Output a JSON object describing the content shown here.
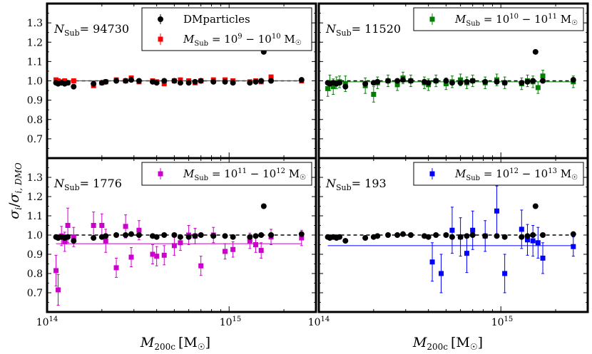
{
  "chart_data": {
    "type": "scatter",
    "xscale": "log",
    "xlim": [
      100000000000000.0,
      3000000000000000.0
    ],
    "ylim": [
      0.6,
      1.4
    ],
    "yticks": [
      0.7,
      0.8,
      0.9,
      1.0,
      1.1,
      1.2,
      1.3
    ],
    "ytick_labels": [
      "0.7",
      "0.8",
      "0.9",
      "1.0",
      "1.1",
      "1.2",
      "1.3"
    ],
    "xtick_labels": {
      "base_14": "10",
      "exp_14": "14",
      "base_15": "10",
      "exp_15": "15"
    },
    "xlabel": {
      "main": "M",
      "sub": "200c",
      "unit": "[M",
      "sun": "☉",
      "close": "]"
    },
    "ylabel": {
      "sigma": "σ",
      "i": "i",
      "slash": "/",
      "sub": "i, DMO"
    },
    "reference_line": 1.0,
    "dm": {
      "label": "DMparticles",
      "color": "#000000",
      "points": [
        [
          112000000000000.0,
          0.99
        ],
        [
          115000000000000.0,
          0.985
        ],
        [
          120000000000000.0,
          0.99
        ],
        [
          125000000000000.0,
          0.985
        ],
        [
          130000000000000.0,
          0.99
        ],
        [
          140000000000000.0,
          0.97
        ],
        [
          180000000000000.0,
          0.985
        ],
        [
          200000000000000.0,
          0.99
        ],
        [
          210000000000000.0,
          0.995
        ],
        [
          240000000000000.0,
          1.0
        ],
        [
          270000000000000.0,
          1.0
        ],
        [
          290000000000000.0,
          1.005
        ],
        [
          320000000000000.0,
          1.0
        ],
        [
          380000000000000.0,
          0.995
        ],
        [
          400000000000000.0,
          0.99
        ],
        [
          440000000000000.0,
          1.0
        ],
        [
          500000000000000.0,
          1.0
        ],
        [
          540000000000000.0,
          0.99
        ],
        [
          600000000000000.0,
          0.99
        ],
        [
          650000000000000.0,
          0.995
        ],
        [
          700000000000000.0,
          1.0
        ],
        [
          820000000000000.0,
          0.995
        ],
        [
          950000000000000.0,
          0.995
        ],
        [
          1050000000000000.0,
          0.99
        ],
        [
          1300000000000000.0,
          0.99
        ],
        [
          1400000000000000.0,
          0.995
        ],
        [
          1500000000000000.0,
          1.0
        ],
        [
          1550000000000000.0,
          1.15
        ],
        [
          1700000000000000.0,
          1.0
        ],
        [
          2500000000000000.0,
          1.005
        ]
      ]
    },
    "panels": [
      {
        "n_label": "N",
        "n_sub": "Sub",
        "n_value": "= 94730",
        "series_label": {
          "m": "M",
          "sub": "Sub",
          "eq": " = 10",
          "e1": "9",
          "dash": " − 10",
          "e2": "10",
          "unit": " M",
          "sun": "☉"
        },
        "color": "#ff0000",
        "fit": 1.0,
        "points": [
          [
            112000000000000.0,
            1.005,
            0.01
          ],
          [
            115000000000000.0,
            1.0,
            0.01
          ],
          [
            120000000000000.0,
            0.995,
            0.01
          ],
          [
            125000000000000.0,
            1.0,
            0.01
          ],
          [
            130000000000000.0,
            0.99,
            0.01
          ],
          [
            140000000000000.0,
            1.0,
            0.01
          ],
          [
            180000000000000.0,
            0.975,
            0.01
          ],
          [
            200000000000000.0,
            0.99,
            0.01
          ],
          [
            210000000000000.0,
            0.995,
            0.01
          ],
          [
            240000000000000.0,
            1.005,
            0.01
          ],
          [
            270000000000000.0,
            1.0,
            0.01
          ],
          [
            290000000000000.0,
            1.015,
            0.01
          ],
          [
            320000000000000.0,
            0.995,
            0.01
          ],
          [
            380000000000000.0,
            1.0,
            0.01
          ],
          [
            400000000000000.0,
            0.995,
            0.01
          ],
          [
            440000000000000.0,
            0.985,
            0.01
          ],
          [
            500000000000000.0,
            1.0,
            0.01
          ],
          [
            540000000000000.0,
            1.005,
            0.01
          ],
          [
            600000000000000.0,
            1.0,
            0.01
          ],
          [
            650000000000000.0,
            0.99,
            0.01
          ],
          [
            700000000000000.0,
            1.0,
            0.01
          ],
          [
            820000000000000.0,
            1.005,
            0.01
          ],
          [
            950000000000000.0,
            1.005,
            0.01
          ],
          [
            1050000000000000.0,
            1.0,
            0.01
          ],
          [
            1300000000000000.0,
            0.995,
            0.01
          ],
          [
            1400000000000000.0,
            1.0,
            0.01
          ],
          [
            1500000000000000.0,
            0.995,
            0.01
          ],
          [
            1700000000000000.0,
            1.02,
            0.01
          ],
          [
            2500000000000000.0,
            1.0,
            0.01
          ]
        ]
      },
      {
        "n_label": "N",
        "n_sub": "Sub",
        "n_value": "= 11520",
        "series_label": {
          "m": "M",
          "sub": "Sub",
          "eq": " = 10",
          "e1": "10",
          "dash": " − 10",
          "e2": "11",
          "unit": " M",
          "sun": "☉"
        },
        "color": "#008000",
        "fit": 0.995,
        "points": [
          [
            112000000000000.0,
            0.96,
            0.04
          ],
          [
            115000000000000.0,
            0.99,
            0.04
          ],
          [
            120000000000000.0,
            0.97,
            0.04
          ],
          [
            125000000000000.0,
            0.99,
            0.03
          ],
          [
            130000000000000.0,
            0.995,
            0.03
          ],
          [
            140000000000000.0,
            0.985,
            0.04
          ],
          [
            180000000000000.0,
            0.975,
            0.04
          ],
          [
            200000000000000.0,
            0.93,
            0.04
          ],
          [
            210000000000000.0,
            0.99,
            0.03
          ],
          [
            240000000000000.0,
            1.0,
            0.03
          ],
          [
            270000000000000.0,
            0.98,
            0.03
          ],
          [
            290000000000000.0,
            1.015,
            0.03
          ],
          [
            320000000000000.0,
            1.0,
            0.03
          ],
          [
            380000000000000.0,
            0.99,
            0.03
          ],
          [
            400000000000000.0,
            0.98,
            0.03
          ],
          [
            440000000000000.0,
            1.0,
            0.03
          ],
          [
            500000000000000.0,
            0.985,
            0.03
          ],
          [
            540000000000000.0,
            0.995,
            0.03
          ],
          [
            600000000000000.0,
            1.005,
            0.03
          ],
          [
            650000000000000.0,
            0.99,
            0.03
          ],
          [
            700000000000000.0,
            1.0,
            0.03
          ],
          [
            820000000000000.0,
            0.99,
            0.03
          ],
          [
            950000000000000.0,
            1.005,
            0.03
          ],
          [
            1050000000000000.0,
            0.99,
            0.03
          ],
          [
            1300000000000000.0,
            0.985,
            0.03
          ],
          [
            1400000000000000.0,
            1.0,
            0.03
          ],
          [
            1500000000000000.0,
            0.995,
            0.03
          ],
          [
            1600000000000000.0,
            0.965,
            0.03
          ],
          [
            1700000000000000.0,
            1.025,
            0.03
          ],
          [
            2500000000000000.0,
            0.995,
            0.03
          ]
        ]
      },
      {
        "n_label": "N",
        "n_sub": "Sub",
        "n_value": "= 1776",
        "series_label": {
          "m": "M",
          "sub": "Sub",
          "eq": " = 10",
          "e1": "11",
          "dash": " − 10",
          "e2": "12",
          "unit": " M",
          "sun": "☉"
        },
        "color": "#cc00cc",
        "fit": 0.955,
        "points": [
          [
            112000000000000.0,
            0.815,
            0.08
          ],
          [
            115000000000000.0,
            0.715,
            0.08
          ],
          [
            120000000000000.0,
            0.995,
            0.05
          ],
          [
            125000000000000.0,
            0.965,
            0.05
          ],
          [
            130000000000000.0,
            1.05,
            0.09
          ],
          [
            140000000000000.0,
            0.99,
            0.05
          ],
          [
            180000000000000.0,
            1.05,
            0.07
          ],
          [
            200000000000000.0,
            1.05,
            0.06
          ],
          [
            210000000000000.0,
            0.97,
            0.06
          ],
          [
            240000000000000.0,
            0.83,
            0.05
          ],
          [
            270000000000000.0,
            1.045,
            0.06
          ],
          [
            290000000000000.0,
            0.885,
            0.05
          ],
          [
            320000000000000.0,
            1.025,
            0.05
          ],
          [
            380000000000000.0,
            0.9,
            0.05
          ],
          [
            400000000000000.0,
            0.89,
            0.05
          ],
          [
            440000000000000.0,
            0.895,
            0.05
          ],
          [
            500000000000000.0,
            0.945,
            0.05
          ],
          [
            540000000000000.0,
            0.96,
            0.04
          ],
          [
            600000000000000.0,
            1.0,
            0.05
          ],
          [
            650000000000000.0,
            0.995,
            0.04
          ],
          [
            700000000000000.0,
            0.84,
            0.05
          ],
          [
            820000000000000.0,
            1.0,
            0.04
          ],
          [
            950000000000000.0,
            0.915,
            0.04
          ],
          [
            1050000000000000.0,
            0.925,
            0.04
          ],
          [
            1300000000000000.0,
            0.97,
            0.04
          ],
          [
            1400000000000000.0,
            0.95,
            0.04
          ],
          [
            1500000000000000.0,
            0.92,
            0.04
          ],
          [
            1700000000000000.0,
            0.99,
            0.04
          ],
          [
            2500000000000000.0,
            0.985,
            0.04
          ]
        ]
      },
      {
        "n_label": "N",
        "n_sub": "Sub",
        "n_value": "= 193",
        "series_label": {
          "m": "M",
          "sub": "Sub",
          "eq": " = 10",
          "e1": "12",
          "dash": " − 10",
          "e2": "13",
          "unit": " M",
          "sun": "☉"
        },
        "color": "#0000ff",
        "fit": 0.945,
        "points": [
          [
            420000000000000.0,
            0.86,
            0.1
          ],
          [
            470000000000000.0,
            0.8,
            0.1
          ],
          [
            540000000000000.0,
            1.025,
            0.12
          ],
          [
            600000000000000.0,
            0.99,
            0.1
          ],
          [
            650000000000000.0,
            0.905,
            0.1
          ],
          [
            700000000000000.0,
            1.025,
            0.1
          ],
          [
            820000000000000.0,
            0.995,
            0.08
          ],
          [
            950000000000000.0,
            1.125,
            0.13
          ],
          [
            1050000000000000.0,
            0.8,
            0.1
          ],
          [
            1300000000000000.0,
            1.03,
            0.1
          ],
          [
            1400000000000000.0,
            0.975,
            0.08
          ],
          [
            1500000000000000.0,
            0.97,
            0.08
          ],
          [
            1600000000000000.0,
            0.96,
            0.08
          ],
          [
            1700000000000000.0,
            0.88,
            0.08
          ],
          [
            2500000000000000.0,
            0.94,
            0.05
          ]
        ]
      }
    ]
  }
}
